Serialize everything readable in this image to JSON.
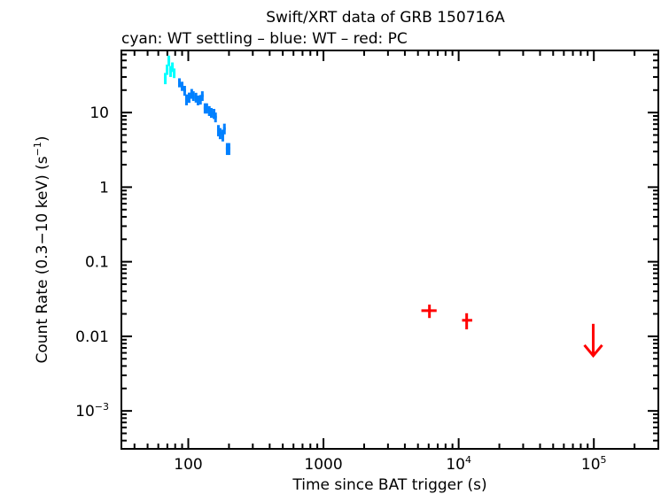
{
  "chart_data": {
    "type": "scatter",
    "title": "Swift/XRT data of GRB 150716A",
    "subtitle": "cyan: WT settling – blue: WT – red: PC",
    "xlabel": "Time since BAT trigger (s)",
    "ylabel": "Count Rate (0.3−10 keV) (s",
    "ylabel_sup": "−1",
    "ylabel_end": ")",
    "xscale": "log",
    "yscale": "log",
    "xlim": [
      32,
      300000
    ],
    "ylim": [
      0.00031,
      68
    ],
    "grid": false,
    "x_ticks": [
      {
        "value": 100,
        "base": "100",
        "sup": ""
      },
      {
        "value": 1000,
        "base": "1000",
        "sup": ""
      },
      {
        "value": 10000,
        "base": "10",
        "sup": "4"
      },
      {
        "value": 100000,
        "base": "10",
        "sup": "5"
      }
    ],
    "y_ticks": [
      {
        "value": 10,
        "base": "10",
        "sup": ""
      },
      {
        "value": 1,
        "base": "1",
        "sup": ""
      },
      {
        "value": 0.1,
        "base": "0.1",
        "sup": ""
      },
      {
        "value": 0.01,
        "base": "0.01",
        "sup": ""
      },
      {
        "value": 0.001,
        "base": "10",
        "sup": "−3"
      }
    ],
    "series": [
      {
        "color": "#00ffff",
        "points": [
          [
            67.6,
            29,
            5
          ],
          [
            69.7,
            38,
            6
          ],
          [
            71.8,
            50,
            8
          ],
          [
            74,
            36,
            6
          ],
          [
            76.3,
            41,
            6
          ],
          [
            78.6,
            34,
            5
          ]
        ]
      },
      {
        "color": "#0080ff",
        "points": [
          [
            86,
            25.3,
            3.5
          ],
          [
            90,
            22.7,
            3.2
          ],
          [
            94,
            19.8,
            3
          ],
          [
            97,
            15,
            2.5
          ],
          [
            101.5,
            16,
            2.5
          ],
          [
            106,
            18,
            2.7
          ],
          [
            109,
            16.8,
            2.5
          ],
          [
            114,
            16,
            2.4
          ],
          [
            118,
            14.7,
            2.2
          ],
          [
            123,
            15,
            2.2
          ],
          [
            127,
            16.8,
            2.5
          ],
          [
            133,
            11.5,
            1.8
          ],
          [
            137,
            11.5,
            1.8
          ],
          [
            143,
            10.6,
            1.6
          ],
          [
            148,
            10,
            1.5
          ],
          [
            155,
            9.7,
            1.5
          ],
          [
            159,
            8.7,
            1.3
          ],
          [
            167,
            5.8,
            1
          ],
          [
            172,
            5.3,
            0.9
          ],
          [
            180,
            5,
            0.9
          ],
          [
            185,
            6.1,
            1
          ],
          [
            194,
            3.3,
            0.6
          ],
          [
            200,
            3.3,
            0.6
          ]
        ]
      },
      {
        "color": "#ff0000",
        "points": [
          [
            6080,
            0.0221,
            0.0045,
            5300,
            6870
          ],
          [
            11460,
            0.0164,
            0.004,
            10600,
            12600
          ]
        ],
        "upper_limits": [
          [
            99000,
            0.0147
          ]
        ]
      }
    ]
  }
}
